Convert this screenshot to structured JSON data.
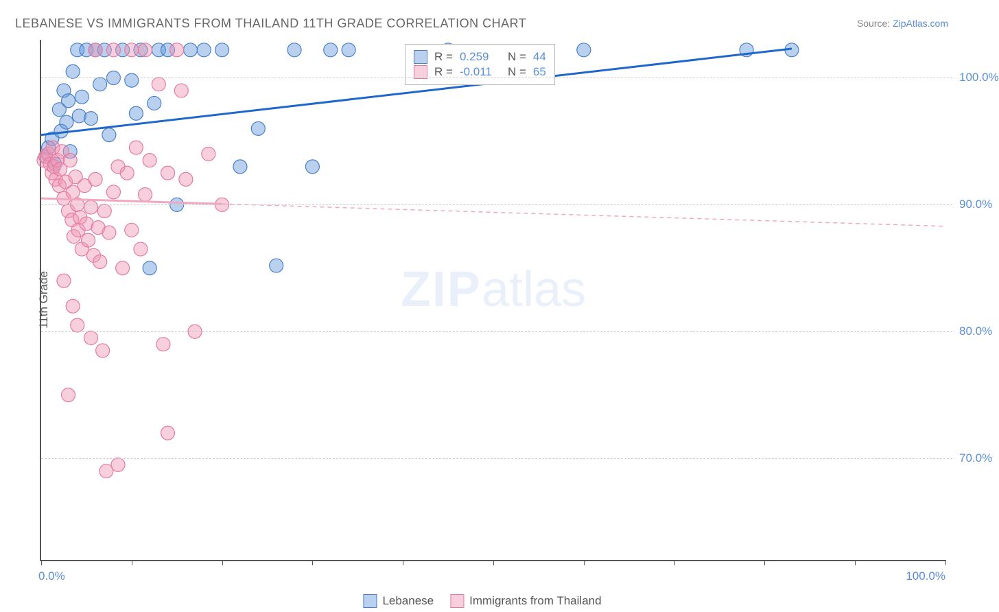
{
  "title": "LEBANESE VS IMMIGRANTS FROM THAILAND 11TH GRADE CORRELATION CHART",
  "source_label": "Source:",
  "source_name": "ZipAtlas.com",
  "watermark_zip": "ZIP",
  "watermark_atlas": "atlas",
  "yaxis_title": "11th Grade",
  "chart": {
    "type": "scatter",
    "background_color": "#ffffff",
    "grid_color": "#cccccc",
    "axis_color": "#555555",
    "xlim": [
      0,
      100
    ],
    "ylim": [
      62,
      103
    ],
    "xticks_label": {
      "min": "0.0%",
      "max": "100.0%"
    },
    "xtick_positions": [
      0,
      10,
      20,
      30,
      40,
      50,
      60,
      70,
      80,
      90,
      100
    ],
    "yticks": [
      {
        "v": 100,
        "label": "100.0%"
      },
      {
        "v": 90,
        "label": "90.0%"
      },
      {
        "v": 80,
        "label": "80.0%"
      },
      {
        "v": 70,
        "label": "70.0%"
      }
    ],
    "marker_radius": 10,
    "marker_opacity": 0.45,
    "trend_line_width_solid": 3,
    "trend_line_width_dash": 1.5,
    "series": [
      {
        "name": "Lebanese",
        "color_fill": "rgba(100,150,220,0.45)",
        "color_stroke": "#4a7fc8",
        "trend_color": "#1f68c9",
        "R": "0.259",
        "N": "44",
        "trend_start": {
          "x": 0,
          "y": 95.5
        },
        "trend_end": {
          "x": 83,
          "y": 102.3
        },
        "trend_solid_until_x": 83,
        "points": [
          [
            0.5,
            93.8
          ],
          [
            0.8,
            94.5
          ],
          [
            1.2,
            95.2
          ],
          [
            1.5,
            93.2
          ],
          [
            2,
            97.5
          ],
          [
            2.2,
            95.8
          ],
          [
            2.5,
            99
          ],
          [
            2.8,
            96.5
          ],
          [
            3,
            98.2
          ],
          [
            3.2,
            94.2
          ],
          [
            3.5,
            100.5
          ],
          [
            4,
            102.2
          ],
          [
            4.2,
            97
          ],
          [
            4.5,
            98.5
          ],
          [
            5,
            102.2
          ],
          [
            5.5,
            96.8
          ],
          [
            6,
            102.2
          ],
          [
            6.5,
            99.5
          ],
          [
            7,
            102.2
          ],
          [
            7.5,
            95.5
          ],
          [
            8,
            100
          ],
          [
            9,
            102.2
          ],
          [
            10,
            99.8
          ],
          [
            10.5,
            97.2
          ],
          [
            11,
            102.2
          ],
          [
            12,
            85
          ],
          [
            12.5,
            98
          ],
          [
            13,
            102.2
          ],
          [
            14,
            102.2
          ],
          [
            15,
            90
          ],
          [
            16.5,
            102.2
          ],
          [
            18,
            102.2
          ],
          [
            20,
            102.2
          ],
          [
            22,
            93
          ],
          [
            24,
            96
          ],
          [
            26,
            85.2
          ],
          [
            28,
            102.2
          ],
          [
            30,
            93
          ],
          [
            32,
            102.2
          ],
          [
            34,
            102.2
          ],
          [
            45,
            102.2
          ],
          [
            60,
            102.2
          ],
          [
            78,
            102.2
          ],
          [
            83,
            102.2
          ]
        ]
      },
      {
        "name": "Immigrants from Thailand",
        "color_fill": "rgba(240,150,180,0.45)",
        "color_stroke": "#e47aa0",
        "trend_color": "#f0a8c0",
        "R": "-0.011",
        "N": "65",
        "trend_start": {
          "x": 0,
          "y": 90.5
        },
        "trend_end": {
          "x": 100,
          "y": 88.3
        },
        "trend_solid_until_x": 20,
        "points": [
          [
            0.3,
            93.5
          ],
          [
            0.5,
            93.8
          ],
          [
            0.8,
            94
          ],
          [
            1,
            93.2
          ],
          [
            1.2,
            92.5
          ],
          [
            1.3,
            94.5
          ],
          [
            1.4,
            93
          ],
          [
            1.6,
            92
          ],
          [
            1.8,
            93.5
          ],
          [
            2,
            91.5
          ],
          [
            2.1,
            92.8
          ],
          [
            2.3,
            94.2
          ],
          [
            2.5,
            90.5
          ],
          [
            2.7,
            91.8
          ],
          [
            3,
            89.5
          ],
          [
            3.2,
            93.5
          ],
          [
            3.4,
            88.8
          ],
          [
            3.5,
            91
          ],
          [
            3.6,
            87.5
          ],
          [
            3.8,
            92.2
          ],
          [
            4,
            90
          ],
          [
            4.1,
            88
          ],
          [
            4.3,
            89
          ],
          [
            4.5,
            86.5
          ],
          [
            4.8,
            91.5
          ],
          [
            5,
            88.5
          ],
          [
            5.2,
            87.2
          ],
          [
            5.5,
            89.8
          ],
          [
            5.8,
            86
          ],
          [
            6,
            92
          ],
          [
            6.3,
            88.2
          ],
          [
            6.5,
            85.5
          ],
          [
            7,
            89.5
          ],
          [
            7.5,
            87.8
          ],
          [
            8,
            91
          ],
          [
            8.5,
            93
          ],
          [
            9,
            85
          ],
          [
            9.5,
            92.5
          ],
          [
            10,
            88
          ],
          [
            10.5,
            94.5
          ],
          [
            11,
            86.5
          ],
          [
            11.5,
            90.8
          ],
          [
            12,
            93.5
          ],
          [
            13,
            99.5
          ],
          [
            13.5,
            79
          ],
          [
            14,
            92.5
          ],
          [
            15,
            102.2
          ],
          [
            3.5,
            82
          ],
          [
            4,
            80.5
          ],
          [
            2.5,
            84
          ],
          [
            5.5,
            79.5
          ],
          [
            3,
            75
          ],
          [
            6.8,
            78.5
          ],
          [
            7.2,
            69
          ],
          [
            8.5,
            69.5
          ],
          [
            14,
            72
          ],
          [
            17,
            80
          ],
          [
            18.5,
            94
          ],
          [
            6,
            102.2
          ],
          [
            8,
            102.2
          ],
          [
            10,
            102.2
          ],
          [
            11.5,
            102.2
          ],
          [
            16,
            92
          ],
          [
            15.5,
            99
          ],
          [
            20,
            90
          ]
        ]
      }
    ]
  },
  "stats_box": {
    "r_label": "R  =",
    "n_label": "N  ="
  },
  "bottom_legend": {
    "series1": "Lebanese",
    "series2": "Immigrants from Thailand"
  }
}
